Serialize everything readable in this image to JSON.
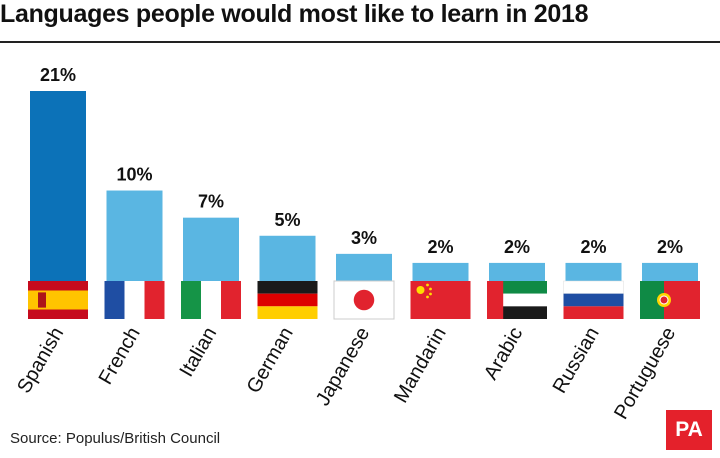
{
  "title": "Languages people would most like to learn in 2018",
  "source": "Source: Populus/British Council",
  "logo": "PA",
  "colors": {
    "highlight_bar": "#0c72b8",
    "bar": "#5ab6e2",
    "text": "#111111"
  },
  "chart_data": {
    "type": "bar",
    "title": "Languages people would most like to learn in 2018",
    "xlabel": "",
    "ylabel": "",
    "grid": false,
    "legend": "none",
    "categories": [
      "Spanish",
      "French",
      "Italian",
      "German",
      "Japanese",
      "Mandarin",
      "Arabic",
      "Russian",
      "Portuguese"
    ],
    "values": [
      21,
      10,
      7,
      5,
      3,
      2,
      2,
      2,
      2
    ],
    "value_labels": [
      "21%",
      "10%",
      "7%",
      "5%",
      "3%",
      "2%",
      "2%",
      "2%",
      "2%"
    ],
    "flags": [
      "spain-flag-icon",
      "france-flag-icon",
      "italy-flag-icon",
      "germany-flag-icon",
      "japan-flag-icon",
      "china-flag-icon",
      "uae-flag-icon",
      "russia-flag-icon",
      "portugal-flag-icon"
    ],
    "highlight_index": 0
  }
}
